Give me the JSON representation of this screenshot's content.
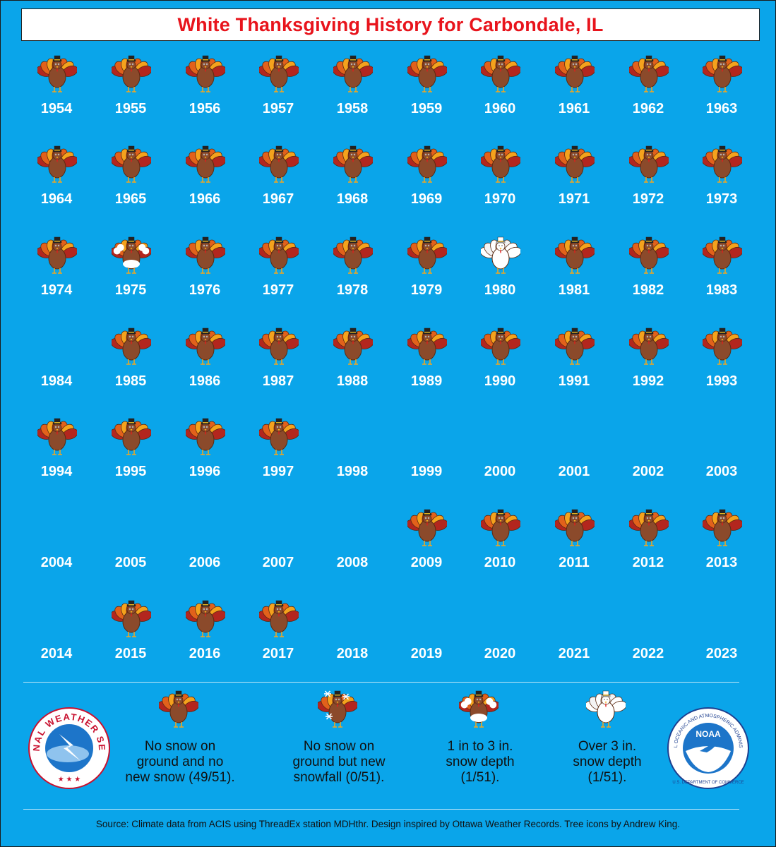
{
  "title": "White Thanksgiving History for Carbondale, IL",
  "chart_data": {
    "type": "table",
    "title": "White Thanksgiving History for Carbondale, IL",
    "categories": {
      "no_snow": "No snow on ground and no new snow",
      "new_snowfall": "No snow on ground but new snowfall",
      "depth_1_3": "1 in to 3 in. snow depth",
      "depth_over_3": "Over 3 in. snow depth"
    },
    "years": [
      {
        "year": "1954",
        "status": "no_snow"
      },
      {
        "year": "1955",
        "status": "no_snow"
      },
      {
        "year": "1956",
        "status": "no_snow"
      },
      {
        "year": "1957",
        "status": "no_snow"
      },
      {
        "year": "1958",
        "status": "no_snow"
      },
      {
        "year": "1959",
        "status": "no_snow"
      },
      {
        "year": "1960",
        "status": "no_snow"
      },
      {
        "year": "1961",
        "status": "no_snow"
      },
      {
        "year": "1962",
        "status": "no_snow"
      },
      {
        "year": "1963",
        "status": "no_snow"
      },
      {
        "year": "1964",
        "status": "no_snow"
      },
      {
        "year": "1965",
        "status": "no_snow"
      },
      {
        "year": "1966",
        "status": "no_snow"
      },
      {
        "year": "1967",
        "status": "no_snow"
      },
      {
        "year": "1968",
        "status": "no_snow"
      },
      {
        "year": "1969",
        "status": "no_snow"
      },
      {
        "year": "1970",
        "status": "no_snow"
      },
      {
        "year": "1971",
        "status": "no_snow"
      },
      {
        "year": "1972",
        "status": "no_snow"
      },
      {
        "year": "1973",
        "status": "no_snow"
      },
      {
        "year": "1974",
        "status": "no_snow"
      },
      {
        "year": "1975",
        "status": "depth_1_3"
      },
      {
        "year": "1976",
        "status": "no_snow"
      },
      {
        "year": "1977",
        "status": "no_snow"
      },
      {
        "year": "1978",
        "status": "no_snow"
      },
      {
        "year": "1979",
        "status": "no_snow"
      },
      {
        "year": "1980",
        "status": "depth_over_3"
      },
      {
        "year": "1981",
        "status": "no_snow"
      },
      {
        "year": "1982",
        "status": "no_snow"
      },
      {
        "year": "1983",
        "status": "no_snow"
      },
      {
        "year": "1984",
        "status": "missing"
      },
      {
        "year": "1985",
        "status": "no_snow"
      },
      {
        "year": "1986",
        "status": "no_snow"
      },
      {
        "year": "1987",
        "status": "no_snow"
      },
      {
        "year": "1988",
        "status": "no_snow"
      },
      {
        "year": "1989",
        "status": "no_snow"
      },
      {
        "year": "1990",
        "status": "no_snow"
      },
      {
        "year": "1991",
        "status": "no_snow"
      },
      {
        "year": "1992",
        "status": "no_snow"
      },
      {
        "year": "1993",
        "status": "no_snow"
      },
      {
        "year": "1994",
        "status": "no_snow"
      },
      {
        "year": "1995",
        "status": "no_snow"
      },
      {
        "year": "1996",
        "status": "no_snow"
      },
      {
        "year": "1997",
        "status": "no_snow"
      },
      {
        "year": "1998",
        "status": "missing"
      },
      {
        "year": "1999",
        "status": "missing"
      },
      {
        "year": "2000",
        "status": "missing"
      },
      {
        "year": "2001",
        "status": "missing"
      },
      {
        "year": "2002",
        "status": "missing"
      },
      {
        "year": "2003",
        "status": "missing"
      },
      {
        "year": "2004",
        "status": "missing"
      },
      {
        "year": "2005",
        "status": "missing"
      },
      {
        "year": "2006",
        "status": "missing"
      },
      {
        "year": "2007",
        "status": "missing"
      },
      {
        "year": "2008",
        "status": "missing"
      },
      {
        "year": "2009",
        "status": "no_snow"
      },
      {
        "year": "2010",
        "status": "no_snow"
      },
      {
        "year": "2011",
        "status": "no_snow"
      },
      {
        "year": "2012",
        "status": "no_snow"
      },
      {
        "year": "2013",
        "status": "no_snow"
      },
      {
        "year": "2014",
        "status": "missing"
      },
      {
        "year": "2015",
        "status": "no_snow"
      },
      {
        "year": "2016",
        "status": "no_snow"
      },
      {
        "year": "2017",
        "status": "no_snow"
      },
      {
        "year": "2018",
        "status": "missing"
      },
      {
        "year": "2019",
        "status": "missing"
      },
      {
        "year": "2020",
        "status": "missing"
      },
      {
        "year": "2021",
        "status": "missing"
      },
      {
        "year": "2022",
        "status": "missing"
      },
      {
        "year": "2023",
        "status": "missing"
      }
    ],
    "counts": {
      "no_snow": "49/51",
      "new_snowfall": "0/51",
      "depth_1_3": "1/51",
      "depth_over_3": "1/51"
    }
  },
  "legend": [
    {
      "key": "no_snow",
      "lines": [
        "No snow on",
        "ground and no",
        "new snow (49/51)."
      ]
    },
    {
      "key": "new_snowfall",
      "lines": [
        "No snow on",
        "ground but new",
        "snowfall (0/51)."
      ]
    },
    {
      "key": "depth_1_3",
      "lines": [
        "1 in to 3 in.",
        "snow depth",
        "(1/51)."
      ]
    },
    {
      "key": "depth_over_3",
      "lines": [
        "Over 3 in.",
        "snow depth",
        "(1/51)."
      ]
    }
  ],
  "logos": {
    "nws": {
      "text": "NATIONAL WEATHER SERVICE"
    },
    "noaa": {
      "center": "NOAA",
      "ring": "NATIONAL OCEANIC AND ATMOSPHERIC ADMINISTRATION",
      "bottom": "U.S. DEPARTMENT OF COMMERCE"
    }
  },
  "source": "Source: Climate data from ACIS using ThreadEx station MDHthr. Design inspired by Ottawa Weather Records. Tree icons by Andrew King.",
  "colors": {
    "background": "#0aa5ea",
    "title": "#e8141c",
    "year_text": "#ffffff"
  }
}
